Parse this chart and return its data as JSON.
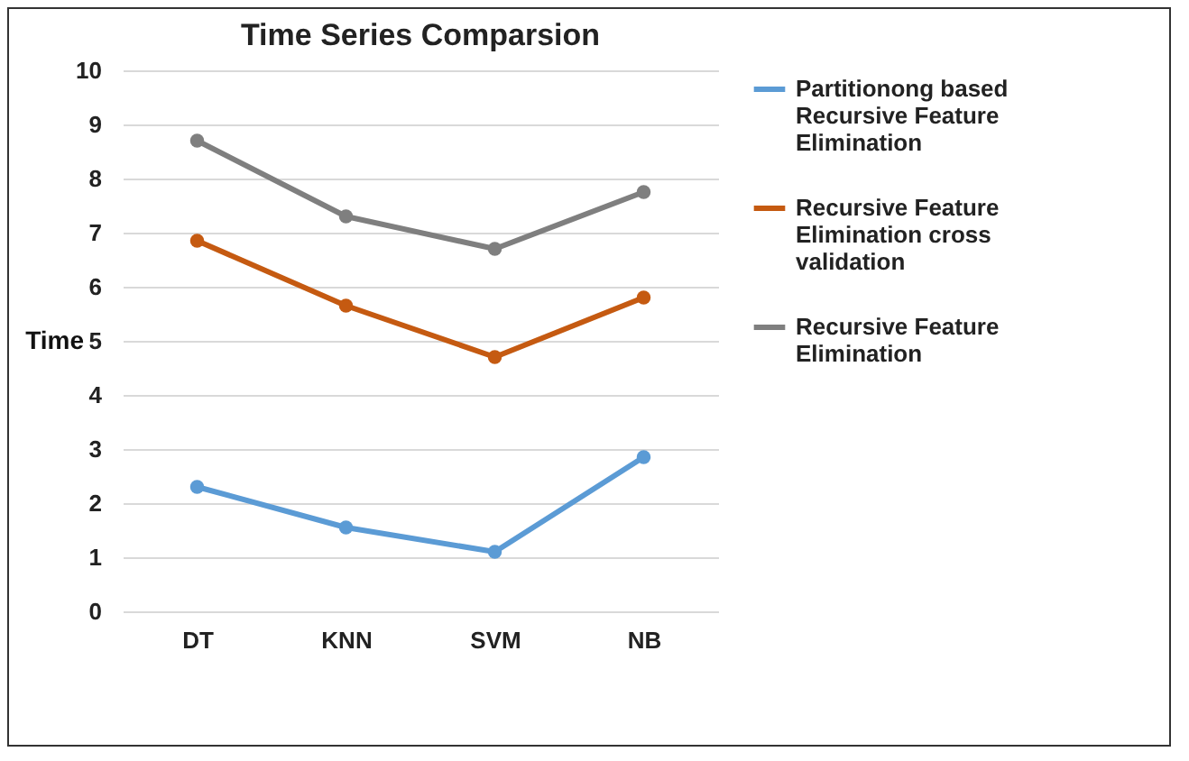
{
  "chart_data": {
    "type": "line",
    "title": "Time Series Comparsion",
    "ylabel": "Time",
    "categories": [
      "DT",
      "KNN",
      "SVM",
      "NB"
    ],
    "series": [
      {
        "name": "Partitionong based Recursive Feature Elimination",
        "color": "#5b9bd5",
        "values": [
          2.3,
          1.55,
          1.1,
          2.85
        ]
      },
      {
        "name": "Recursive Feature Elimination cross validation",
        "color": "#c55a11",
        "values": [
          6.85,
          5.65,
          4.7,
          5.8
        ]
      },
      {
        "name": "Recursive Feature Elimination",
        "color": "#7f7f7f",
        "values": [
          8.7,
          7.3,
          6.7,
          7.75
        ]
      }
    ],
    "ylim": [
      0,
      10
    ],
    "yticks": [
      0,
      1,
      2,
      3,
      4,
      5,
      6,
      7,
      8,
      9,
      10
    ],
    "grid": "y",
    "legend": "right",
    "marker": "circle",
    "line_style": "solid"
  }
}
